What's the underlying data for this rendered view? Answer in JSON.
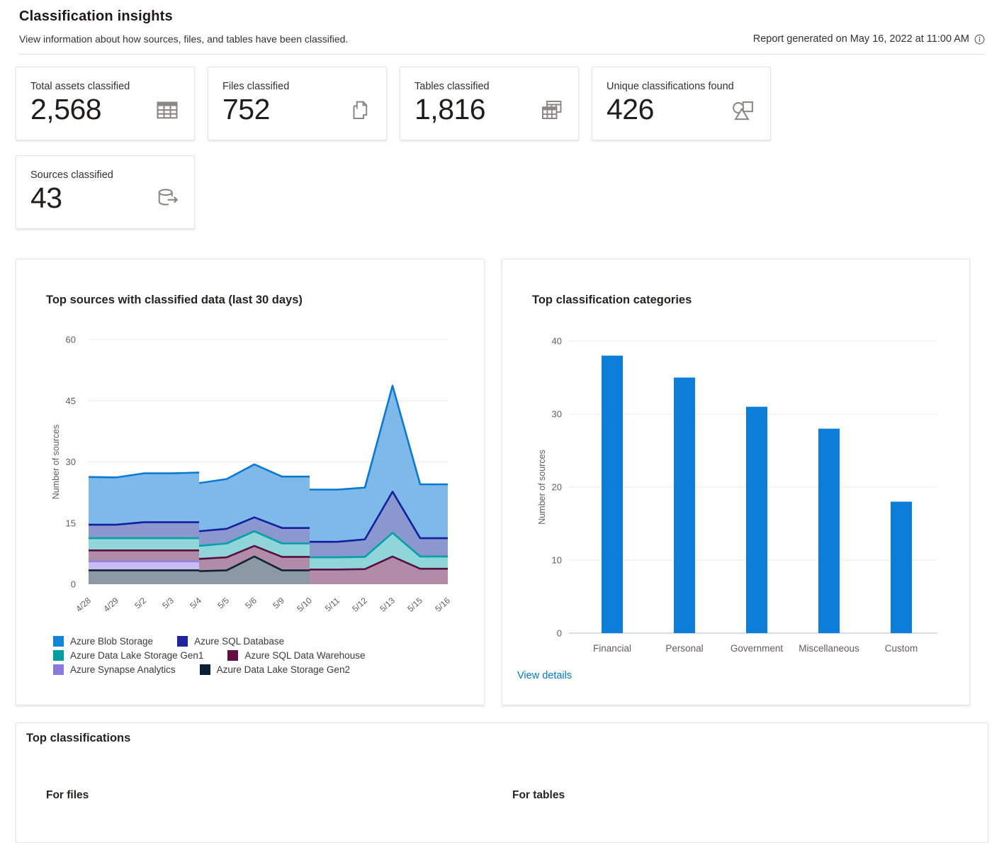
{
  "header": {
    "title": "Classification insights",
    "subtitle": "View information about how sources, files, and tables have been classified.",
    "report_generated": "Report generated on May 16, 2022 at 11:00 AM"
  },
  "stat_cards": [
    {
      "label": "Total assets classified",
      "value": "2,568",
      "icon": "table-grid-icon"
    },
    {
      "label": "Files classified",
      "value": "752",
      "icon": "documents-icon"
    },
    {
      "label": "Tables classified",
      "value": "1,816",
      "icon": "stacked-tables-icon"
    },
    {
      "label": "Unique classifications found",
      "value": "426",
      "icon": "shapes-icon"
    },
    {
      "label": "Sources classified",
      "value": "43",
      "icon": "database-export-icon"
    }
  ],
  "chart_data": [
    {
      "type": "area",
      "title": "Top sources with classified data (last 30 days)",
      "xlabel": "",
      "ylabel": "Number of sources",
      "ylim": [
        0,
        60
      ],
      "yticks": [
        0,
        15,
        30,
        45,
        60
      ],
      "grid": true,
      "legend_position": "bottom",
      "x_labels": [
        "4/28",
        "4/29",
        "5/2",
        "5/3",
        "5/4",
        "5/5",
        "5/6",
        "5/9",
        "5/10",
        "5/11",
        "5/12",
        "5/13",
        "5/15",
        "5/16"
      ],
      "note": "stacked area drawn in three segments with vertical steps at 5/4 and 5/10; stack order is bottom to top",
      "series_styles": [
        {
          "name": "Azure Blob Storage",
          "stroke": "#0B79D4",
          "fill": "#7EB9E9",
          "legend": "#1284DA"
        },
        {
          "name": "Azure SQL Database",
          "stroke": "#12209E",
          "fill": "#8B97CF",
          "legend": "#20249F"
        },
        {
          "name": "Azure Data Lake Storage Gen1",
          "stroke": "#00A1A8",
          "fill": "#90D5D8",
          "legend": "#009E9E"
        },
        {
          "name": "Azure SQL Data Warehouse",
          "stroke": "#570F44",
          "fill": "#B08CA9",
          "legend": "#630E45"
        },
        {
          "name": "Azure Synapse Analytics",
          "stroke": "#9283E0",
          "fill": "#C9BDF3",
          "legend": "#8A7AE0"
        },
        {
          "name": "Azure Data Lake Storage Gen2",
          "stroke": "#0C2338",
          "fill": "#8C98A4",
          "legend": "#0A1F38"
        }
      ],
      "segments": [
        {
          "start_index": 0,
          "x": [
            "4/28",
            "4/29",
            "5/2",
            "5/3",
            "5/4"
          ],
          "stack": [
            {
              "name": "Azure Data Lake Storage Gen2",
              "values": [
                3.4,
                3.4,
                3.4,
                3.4,
                3.4
              ]
            },
            {
              "name": "Azure Synapse Analytics",
              "values": [
                2.2,
                2.2,
                2.2,
                2.2,
                2.2
              ]
            },
            {
              "name": "Azure SQL Data Warehouse",
              "values": [
                2.7,
                2.7,
                2.7,
                2.7,
                2.7
              ]
            },
            {
              "name": "Azure Data Lake Storage Gen1",
              "values": [
                3.0,
                3.0,
                3.0,
                3.0,
                3.0
              ]
            },
            {
              "name": "Azure SQL Database",
              "values": [
                3.3,
                3.3,
                3.9,
                3.9,
                3.9
              ]
            },
            {
              "name": "Azure Blob Storage",
              "values": [
                11.7,
                11.6,
                12.0,
                12.0,
                12.2
              ]
            }
          ]
        },
        {
          "start_index": 4,
          "x": [
            "5/4",
            "5/5",
            "5/6",
            "5/9",
            "5/10"
          ],
          "stack": [
            {
              "name": "Azure Data Lake Storage Gen2",
              "values": [
                3.2,
                3.4,
                6.8,
                3.4,
                3.4
              ]
            },
            {
              "name": "Azure SQL Data Warehouse",
              "values": [
                3.0,
                3.2,
                2.6,
                3.3,
                3.3
              ]
            },
            {
              "name": "Azure Data Lake Storage Gen1",
              "values": [
                3.2,
                3.4,
                3.6,
                3.3,
                3.3
              ]
            },
            {
              "name": "Azure SQL Database",
              "values": [
                3.6,
                3.6,
                3.4,
                3.8,
                3.8
              ]
            },
            {
              "name": "Azure Blob Storage",
              "values": [
                11.8,
                12.2,
                13.0,
                12.6,
                12.6
              ]
            }
          ]
        },
        {
          "start_index": 8,
          "x": [
            "5/10",
            "5/11",
            "5/12",
            "5/13",
            "5/15",
            "5/16"
          ],
          "stack": [
            {
              "name": "Azure SQL Data Warehouse",
              "values": [
                3.6,
                3.6,
                3.7,
                6.8,
                3.8,
                3.8
              ]
            },
            {
              "name": "Azure Data Lake Storage Gen1",
              "values": [
                3.0,
                3.0,
                3.0,
                5.8,
                3.0,
                3.0
              ]
            },
            {
              "name": "Azure SQL Database",
              "values": [
                3.8,
                3.8,
                4.3,
                10.1,
                4.5,
                4.5
              ]
            },
            {
              "name": "Azure Blob Storage",
              "values": [
                12.8,
                12.8,
                12.7,
                26.0,
                13.2,
                13.2
              ]
            }
          ]
        }
      ],
      "legend_rows": [
        [
          "Azure Blob Storage",
          "Azure SQL Database"
        ],
        [
          "Azure Data Lake Storage Gen1",
          "Azure SQL Data Warehouse"
        ],
        [
          "Azure Synapse Analytics",
          "Azure Data Lake Storage Gen2"
        ]
      ]
    },
    {
      "type": "bar",
      "title": "Top classification categories",
      "xlabel": "",
      "ylabel": "Number of sources",
      "ylim": [
        0,
        40
      ],
      "yticks": [
        0,
        10,
        20,
        30,
        40
      ],
      "grid": true,
      "categories": [
        "Financial",
        "Personal",
        "Government",
        "Miscellaneous",
        "Custom"
      ],
      "values": [
        38,
        35,
        31,
        28,
        18
      ],
      "bar_color": "#0C7DD9",
      "link_label": "View details"
    }
  ],
  "top_classifications": {
    "title": "Top classifications",
    "for_files": "For files",
    "for_tables": "For tables"
  }
}
